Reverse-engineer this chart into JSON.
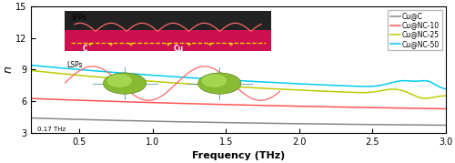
{
  "title": "",
  "xlabel": "Frequency (THz)",
  "ylabel": "n",
  "xlim": [
    0.17,
    3.0
  ],
  "ylim": [
    3,
    15
  ],
  "yticks": [
    3,
    6,
    9,
    12,
    15
  ],
  "xticks": [
    0.5,
    1.0,
    1.5,
    2.0,
    2.5,
    3.0
  ],
  "legend_labels": [
    "Cu@C",
    "Cu@NC-10",
    "Cu@NC-25",
    "Cu@NC-50"
  ],
  "line_colors": [
    "#888888",
    "#FF5555",
    "#BBCC00",
    "#00CCEE"
  ],
  "vline_x": 0.17,
  "vline_label": "0.17 THz",
  "background_color": "#ffffff",
  "spp_dark_color": "#222222",
  "spp_magenta_color": "#CC1050",
  "spp_wave_color": "#FF6666",
  "spp_dash_color": "#FFDD00",
  "lsp_wave_color": "#FF6666",
  "lsp_sphere_outer": "#88BB33",
  "lsp_sphere_inner": "#AADE55",
  "lsp_line_color": "#5599AA"
}
